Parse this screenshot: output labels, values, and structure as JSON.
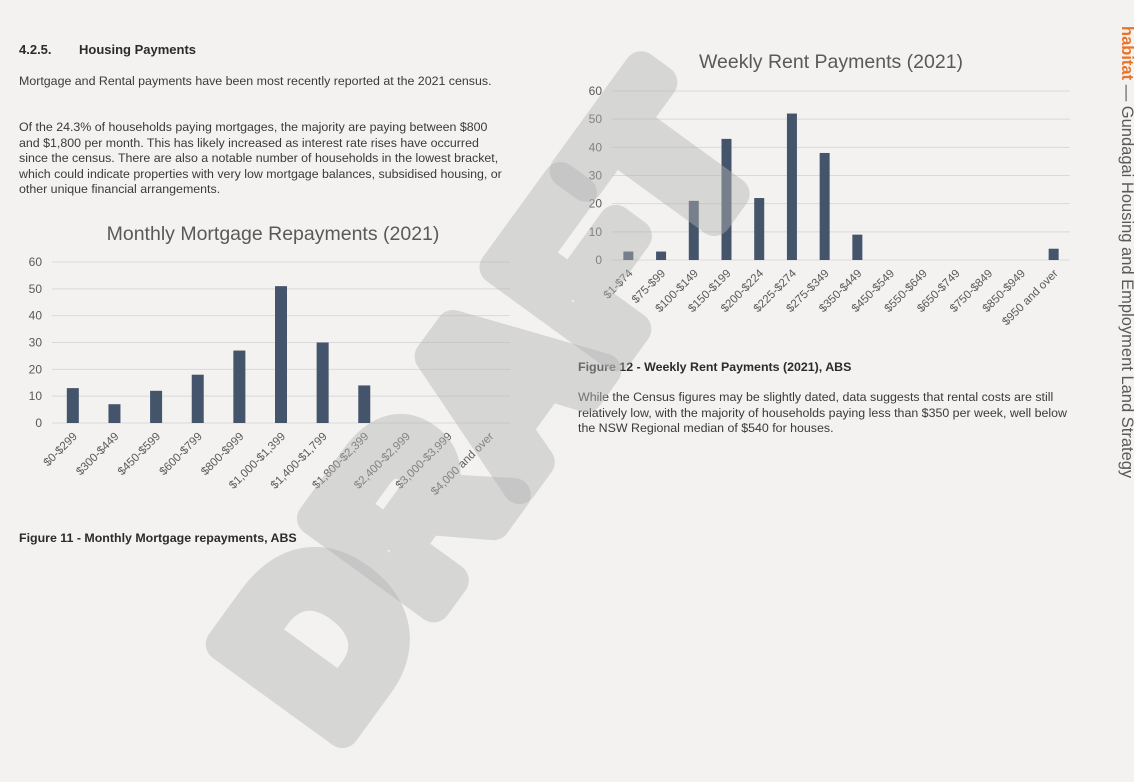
{
  "section": {
    "number": "4.2.5.",
    "title": "Housing Payments",
    "para1": "Mortgage and Rental payments have been most recently reported at the 2021 census.",
    "para2": "Of the 24.3% of households paying mortgages, the majority are paying between $800 and $1,800 per month. This has likely increased as interest rate rises have occurred since the census. There are also a notable number of households in the lowest bracket, which could indicate properties with very low mortgage balances, subsidised housing, or other unique financial arrangements."
  },
  "figure11": {
    "caption": "Figure 11 - Monthly Mortgage repayments, ABS"
  },
  "figure12": {
    "caption": "Figure 12 - Weekly Rent Payments (2021), ABS",
    "para": "While the Census figures may be slightly dated, data suggests that rental costs are still relatively low, with the majority of households paying less than $350 per week, well below the NSW Regional median of $540 for houses."
  },
  "side": {
    "brand": "habitat",
    "dash": "—",
    "title": "Gundagai Housing and Employment Land Strategy"
  },
  "watermark": "DRAFT",
  "colors": {
    "bar": "#44546a",
    "grid": "#d9d9d9",
    "brand": "#e8742a"
  },
  "chart_data": [
    {
      "type": "bar",
      "title": "Monthly Mortgage Repayments (2021)",
      "categories": [
        "$0-$299",
        "$300-$449",
        "$450-$599",
        "$600-$799",
        "$800-$999",
        "$1,000-$1,399",
        "$1,400-$1,799",
        "$1,800-$2,399",
        "$2,400-$2,999",
        "$3,000-$3,999",
        "$4,000 and over"
      ],
      "values": [
        13,
        7,
        12,
        18,
        27,
        51,
        30,
        14,
        0,
        0,
        0
      ],
      "ylim": [
        0,
        60
      ],
      "yticks": [
        0,
        10,
        20,
        30,
        40,
        50,
        60
      ],
      "grid": true
    },
    {
      "type": "bar",
      "title": "Weekly Rent Payments (2021)",
      "categories": [
        "$1-$74",
        "$75-$99",
        "$100-$149",
        "$150-$199",
        "$200-$224",
        "$225-$274",
        "$275-$349",
        "$350-$449",
        "$450-$549",
        "$550-$649",
        "$650-$749",
        "$750-$849",
        "$850-$949",
        "$950 and over"
      ],
      "values": [
        3,
        3,
        21,
        43,
        22,
        52,
        38,
        9,
        0,
        0,
        0,
        0,
        0,
        4
      ],
      "ylim": [
        0,
        60
      ],
      "yticks": [
        0,
        10,
        20,
        30,
        40,
        50,
        60
      ],
      "grid": true
    }
  ]
}
